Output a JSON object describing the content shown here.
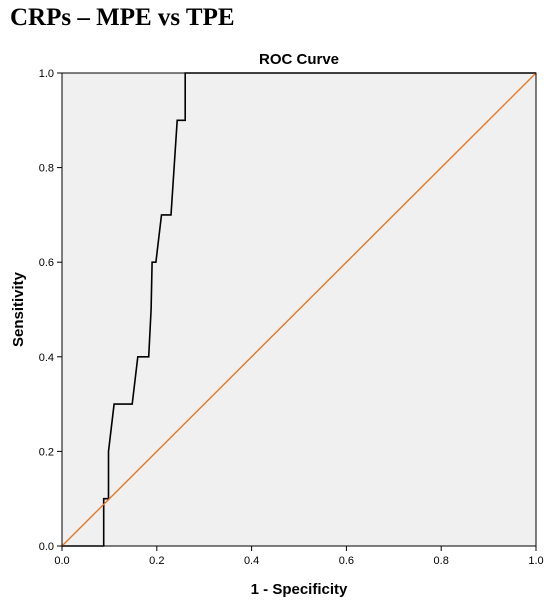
{
  "page": {
    "heading": "CRPs – MPE vs TPE"
  },
  "chart_data": {
    "type": "line",
    "title": "ROC Curve",
    "xlabel": "1 - Specificity",
    "ylabel": "Sensitivity",
    "xlim": [
      0.0,
      1.0
    ],
    "ylim": [
      0.0,
      1.0
    ],
    "x_ticks": [
      "0.0",
      "0.2",
      "0.4",
      "0.6",
      "0.8",
      "1.0"
    ],
    "y_ticks": [
      "0.0",
      "0.2",
      "0.4",
      "0.6",
      "0.8",
      "1.0"
    ],
    "grid": false,
    "legend": "none",
    "background_color": "#f0f0f0",
    "series": [
      {
        "color": "#000000",
        "points": [
          [
            0.0,
            0.0
          ],
          [
            0.088,
            0.0
          ],
          [
            0.088,
            0.1
          ],
          [
            0.098,
            0.1
          ],
          [
            0.098,
            0.2
          ],
          [
            0.11,
            0.3
          ],
          [
            0.148,
            0.3
          ],
          [
            0.16,
            0.4
          ],
          [
            0.183,
            0.4
          ],
          [
            0.188,
            0.5
          ],
          [
            0.19,
            0.6
          ],
          [
            0.198,
            0.6
          ],
          [
            0.21,
            0.7
          ],
          [
            0.23,
            0.7
          ],
          [
            0.243,
            0.9
          ],
          [
            0.26,
            0.9
          ],
          [
            0.26,
            1.0
          ],
          [
            1.0,
            1.0
          ]
        ]
      },
      {
        "color": "#e87722",
        "points": [
          [
            0.0,
            0.0
          ],
          [
            1.0,
            1.0
          ]
        ]
      }
    ]
  }
}
